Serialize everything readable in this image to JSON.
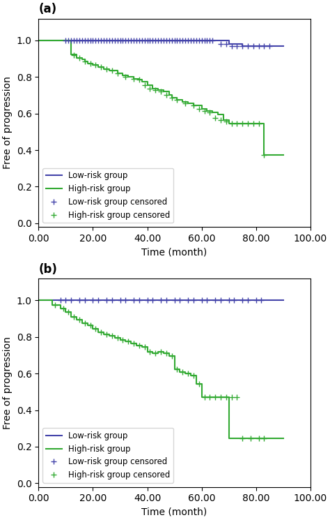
{
  "chart_data": [
    {
      "type": "line",
      "title": "(a)",
      "xlabel": "Time (month)",
      "ylabel": "Free of progression",
      "xlim": [
        0,
        100
      ],
      "ylim": [
        -0.02,
        1.12
      ],
      "xticks": [
        {
          "value": 0.0,
          "label": "0.00"
        },
        {
          "value": 20.0,
          "label": "20.00"
        },
        {
          "value": 40.0,
          "label": "40.00"
        },
        {
          "value": 60.0,
          "label": "60.00"
        },
        {
          "value": 80.0,
          "label": "80.00"
        },
        {
          "value": 100.0,
          "label": "100.00"
        }
      ],
      "yticks": [
        {
          "value": 0.0,
          "label": "0.0"
        },
        {
          "value": 0.2,
          "label": "0.2"
        },
        {
          "value": 0.4,
          "label": "0.4"
        },
        {
          "value": 0.6,
          "label": "0.6"
        },
        {
          "value": 0.8,
          "label": "0.8"
        },
        {
          "value": 1.0,
          "label": "1.0"
        }
      ],
      "grid": false,
      "legend": "lower left",
      "series": [
        {
          "name": "Low-risk group",
          "type": "step",
          "color": "#4444aa",
          "x": [
            0,
            10,
            65,
            70,
            75,
            83,
            90
          ],
          "values": [
            1.0,
            1.0,
            1.0,
            0.98,
            0.97,
            0.97,
            0.97
          ]
        },
        {
          "name": "High-risk group",
          "type": "step",
          "color": "#33aa33",
          "x": [
            0,
            12,
            14,
            16,
            17,
            18,
            20,
            22,
            24,
            26,
            27,
            29,
            31,
            33,
            35,
            37,
            38,
            40,
            42,
            44,
            46,
            48,
            49,
            51,
            53,
            55,
            57,
            60,
            62,
            64,
            66,
            68,
            70,
            80,
            83,
            90
          ],
          "values": [
            1.0,
            0.925,
            0.905,
            0.895,
            0.885,
            0.875,
            0.865,
            0.855,
            0.845,
            0.835,
            0.835,
            0.82,
            0.81,
            0.8,
            0.79,
            0.785,
            0.775,
            0.755,
            0.735,
            0.73,
            0.72,
            0.7,
            0.685,
            0.675,
            0.665,
            0.655,
            0.645,
            0.625,
            0.615,
            0.605,
            0.595,
            0.565,
            0.545,
            0.545,
            0.375,
            0.375
          ]
        },
        {
          "name": "Low-risk group censored",
          "type": "scatter",
          "marker": "plus",
          "color": "#4444aa",
          "x": [
            10,
            11,
            12,
            13,
            14,
            15,
            16,
            17,
            18,
            19,
            20,
            21,
            22,
            23,
            24,
            25,
            26,
            27,
            28,
            29,
            30,
            31,
            32,
            33,
            34,
            35,
            36,
            37,
            38,
            39,
            40,
            41,
            42,
            43,
            44,
            45,
            46,
            47,
            48,
            49,
            50,
            51,
            52,
            53,
            54,
            55,
            56,
            57,
            58,
            59,
            60,
            61,
            62,
            63,
            64,
            67,
            69,
            71,
            73,
            75,
            77,
            79,
            81,
            83,
            85
          ],
          "values": [
            1.0,
            1.0,
            1.0,
            1.0,
            1.0,
            1.0,
            1.0,
            1.0,
            1.0,
            1.0,
            1.0,
            1.0,
            1.0,
            1.0,
            1.0,
            1.0,
            1.0,
            1.0,
            1.0,
            1.0,
            1.0,
            1.0,
            1.0,
            1.0,
            1.0,
            1.0,
            1.0,
            1.0,
            1.0,
            1.0,
            1.0,
            1.0,
            1.0,
            1.0,
            1.0,
            1.0,
            1.0,
            1.0,
            1.0,
            1.0,
            1.0,
            1.0,
            1.0,
            1.0,
            1.0,
            1.0,
            1.0,
            1.0,
            1.0,
            1.0,
            1.0,
            1.0,
            1.0,
            1.0,
            1.0,
            0.98,
            0.98,
            0.97,
            0.97,
            0.97,
            0.97,
            0.97,
            0.97,
            0.97,
            0.97
          ]
        },
        {
          "name": "High-risk group censored",
          "type": "scatter",
          "marker": "plus",
          "color": "#33aa33",
          "x": [
            13,
            15,
            17,
            19,
            21,
            23,
            25,
            27,
            29,
            32,
            35,
            37,
            39,
            41,
            43,
            45,
            47,
            49,
            51,
            54,
            57,
            59,
            61,
            63,
            65,
            67,
            69,
            71,
            73,
            75,
            77,
            79,
            81,
            83
          ],
          "values": [
            0.92,
            0.905,
            0.885,
            0.875,
            0.865,
            0.855,
            0.845,
            0.835,
            0.82,
            0.8,
            0.79,
            0.785,
            0.755,
            0.735,
            0.73,
            0.72,
            0.7,
            0.685,
            0.675,
            0.655,
            0.645,
            0.625,
            0.615,
            0.605,
            0.575,
            0.565,
            0.555,
            0.545,
            0.545,
            0.545,
            0.545,
            0.545,
            0.545,
            0.375
          ]
        }
      ]
    },
    {
      "type": "line",
      "title": "(b)",
      "xlabel": "Time (month)",
      "ylabel": "Free of progression",
      "xlim": [
        0,
        100
      ],
      "ylim": [
        -0.02,
        1.12
      ],
      "xticks": [
        {
          "value": 0.0,
          "label": "0.00"
        },
        {
          "value": 20.0,
          "label": "20.00"
        },
        {
          "value": 40.0,
          "label": "40.00"
        },
        {
          "value": 60.0,
          "label": "60.00"
        },
        {
          "value": 80.0,
          "label": "80.00"
        },
        {
          "value": 100.0,
          "label": "100.00"
        }
      ],
      "yticks": [
        {
          "value": 0.0,
          "label": "0.0"
        },
        {
          "value": 0.2,
          "label": "0.2"
        },
        {
          "value": 0.4,
          "label": "0.4"
        },
        {
          "value": 0.6,
          "label": "0.6"
        },
        {
          "value": 0.8,
          "label": "0.8"
        },
        {
          "value": 1.0,
          "label": "1.0"
        }
      ],
      "grid": false,
      "legend": "lower left",
      "series": [
        {
          "name": "Low-risk group",
          "type": "step",
          "color": "#4444aa",
          "x": [
            0,
            5,
            7,
            83,
            90
          ],
          "values": [
            1.0,
            1.0,
            1.0,
            1.0,
            1.0
          ]
        },
        {
          "name": "High-risk group",
          "type": "step",
          "color": "#33aa33",
          "x": [
            0,
            5,
            8,
            10,
            12,
            14,
            16,
            18,
            20,
            22,
            24,
            26,
            28,
            30,
            32,
            34,
            36,
            38,
            40,
            42,
            44,
            46,
            48,
            50,
            52,
            54,
            56,
            58,
            60,
            62,
            64,
            66,
            68,
            70,
            75,
            78,
            83,
            90
          ],
          "values": [
            1.0,
            0.975,
            0.955,
            0.935,
            0.91,
            0.895,
            0.875,
            0.865,
            0.845,
            0.825,
            0.815,
            0.805,
            0.795,
            0.785,
            0.775,
            0.765,
            0.755,
            0.745,
            0.72,
            0.71,
            0.72,
            0.71,
            0.695,
            0.625,
            0.61,
            0.6,
            0.59,
            0.545,
            0.47,
            0.47,
            0.47,
            0.47,
            0.47,
            0.245,
            0.245,
            0.245,
            0.245,
            0.245
          ]
        },
        {
          "name": "Low-risk group censored",
          "type": "scatter",
          "marker": "plus",
          "color": "#4444aa",
          "x": [
            8,
            10,
            12,
            15,
            17,
            20,
            22,
            25,
            27,
            30,
            32,
            35,
            37,
            40,
            42,
            45,
            47,
            50,
            52,
            55,
            57,
            60,
            62,
            65,
            67,
            70,
            72,
            75,
            77,
            80,
            82
          ],
          "values": [
            1.0,
            1.0,
            1.0,
            1.0,
            1.0,
            1.0,
            1.0,
            1.0,
            1.0,
            1.0,
            1.0,
            1.0,
            1.0,
            1.0,
            1.0,
            1.0,
            1.0,
            1.0,
            1.0,
            1.0,
            1.0,
            1.0,
            1.0,
            1.0,
            1.0,
            1.0,
            1.0,
            1.0,
            1.0,
            1.0,
            1.0
          ]
        },
        {
          "name": "High-risk group censored",
          "type": "scatter",
          "marker": "plus",
          "color": "#33aa33",
          "x": [
            6,
            9,
            11,
            13,
            15,
            17,
            19,
            21,
            23,
            25,
            27,
            29,
            31,
            33,
            35,
            37,
            39,
            41,
            43,
            45,
            47,
            49,
            51,
            53,
            55,
            57,
            59,
            61,
            63,
            65,
            67,
            69,
            71,
            73,
            75,
            78,
            81,
            83
          ],
          "values": [
            0.975,
            0.955,
            0.935,
            0.91,
            0.895,
            0.875,
            0.865,
            0.845,
            0.825,
            0.815,
            0.805,
            0.795,
            0.785,
            0.775,
            0.765,
            0.755,
            0.745,
            0.72,
            0.71,
            0.72,
            0.71,
            0.695,
            0.625,
            0.61,
            0.6,
            0.59,
            0.545,
            0.47,
            0.47,
            0.47,
            0.47,
            0.47,
            0.47,
            0.47,
            0.245,
            0.245,
            0.245,
            0.245
          ]
        }
      ]
    }
  ]
}
